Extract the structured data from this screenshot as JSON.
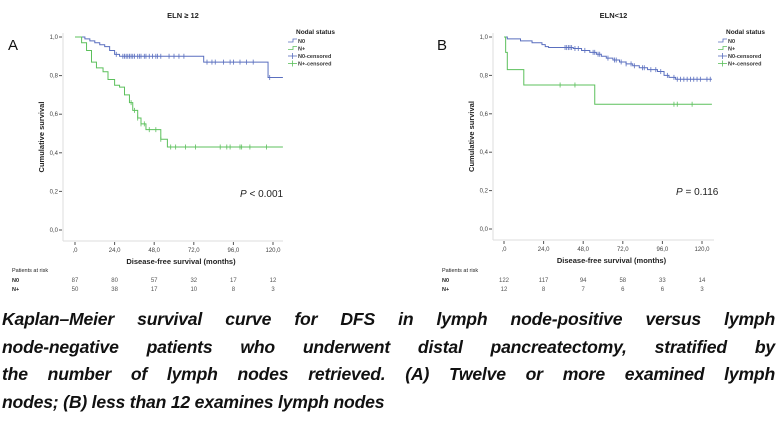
{
  "figure": {
    "caption_lines": [
      "Kaplan–Meier survival curve for DFS in lymph node-positive versus lymph",
      "node-negative patients who underwent distal pancreatectomy, stratified by",
      "the number of lymph nodes retrieved. (A) Twelve or more examined lymph",
      "nodes; (B) less than 12 examines lymph nodes"
    ]
  },
  "colors": {
    "N0": "#5a6fbf",
    "N+": "#5cc05c",
    "axis": "#cccccc",
    "text": "#333333"
  },
  "chart_data": [
    {
      "type": "line",
      "panel_label": "A",
      "title": "ELN ≥ 12",
      "xlabel": "Disease-free survival (months)",
      "ylabel": "Cumulative survival",
      "xlim": [
        -7,
        127
      ],
      "ylim": [
        0,
        1
      ],
      "xticks": [
        0,
        24,
        48,
        72,
        96,
        120
      ],
      "xtick_labels": [
        ",0",
        "24,0",
        "48,0",
        "72,0",
        "96,0",
        "120,0"
      ],
      "yticks": [
        0,
        0.2,
        0.4,
        0.6,
        0.8,
        1.0
      ],
      "ytick_labels": [
        "0,0",
        "0,2",
        "0,4",
        "0,6",
        "0,8",
        "1,0"
      ],
      "grid": false,
      "legend_title": "Nodal status",
      "legend_entries": [
        "N0",
        "N+",
        "N0-censored",
        "N+-censored"
      ],
      "legend_position": "top-right",
      "annotation": {
        "p_italic": "P",
        "p_rest": " < 0.001"
      },
      "series": [
        {
          "name": "N0",
          "steps": [
            [
              0,
              1.0
            ],
            [
              6,
              0.99
            ],
            [
              9,
              0.98
            ],
            [
              12,
              0.97
            ],
            [
              15,
              0.96
            ],
            [
              18,
              0.95
            ],
            [
              21,
              0.93
            ],
            [
              24,
              0.91
            ],
            [
              27,
              0.9
            ],
            [
              78,
              0.87
            ],
            [
              117,
              0.79
            ]
          ],
          "end": 126,
          "censored": [
            25,
            29,
            30,
            31,
            32,
            33,
            34,
            35,
            36,
            38,
            39,
            40,
            42,
            43,
            45,
            47,
            49,
            50,
            52,
            57,
            60,
            63,
            66,
            80,
            83,
            85,
            90,
            94,
            96,
            100,
            104,
            108,
            118
          ]
        },
        {
          "name": "N+",
          "steps": [
            [
              0,
              1.0
            ],
            [
              4,
              0.97
            ],
            [
              7,
              0.93
            ],
            [
              10,
              0.87
            ],
            [
              13,
              0.84
            ],
            [
              17,
              0.82
            ],
            [
              20,
              0.78
            ],
            [
              24,
              0.75
            ],
            [
              27,
              0.74
            ],
            [
              30,
              0.7
            ],
            [
              33,
              0.66
            ],
            [
              35,
              0.62
            ],
            [
              38,
              0.58
            ],
            [
              40,
              0.55
            ],
            [
              43,
              0.52
            ],
            [
              52,
              0.47
            ],
            [
              56,
              0.43
            ]
          ],
          "end": 126,
          "censored": [
            34,
            36,
            38,
            40,
            42,
            45,
            49,
            52,
            58,
            61,
            67,
            73,
            88,
            92,
            94,
            100,
            101,
            106,
            116
          ]
        }
      ],
      "risk_table": {
        "header": "Patients at risk",
        "rows": [
          {
            "label": "N0",
            "values": [
              "87",
              "80",
              "57",
              "32",
              "17",
              "12"
            ]
          },
          {
            "label": "N+",
            "values": [
              "50",
              "38",
              "17",
              "10",
              "8",
              "3"
            ]
          }
        ]
      }
    },
    {
      "type": "line",
      "panel_label": "B",
      "title": "ELN<12",
      "xlabel": "Disease-free survival (months)",
      "ylabel": "Cumulative survival",
      "xlim": [
        -7,
        127
      ],
      "ylim": [
        0,
        1
      ],
      "xticks": [
        0,
        24,
        48,
        72,
        96,
        120
      ],
      "xtick_labels": [
        ",0",
        "24,0",
        "48,0",
        "72,0",
        "96,0",
        "120,0"
      ],
      "yticks": [
        0,
        0.2,
        0.4,
        0.6,
        0.8,
        1.0
      ],
      "ytick_labels": [
        "0,0",
        "0,2",
        "0,4",
        "0,6",
        "0,8",
        "1,0"
      ],
      "grid": false,
      "legend_title": "Nodal status",
      "legend_entries": [
        "N0",
        "N+",
        "N0-censored",
        "N+-censored"
      ],
      "legend_position": "top-right",
      "annotation": {
        "p_italic": "P",
        "p_rest": " = 0.116"
      },
      "series": [
        {
          "name": "N0",
          "steps": [
            [
              0,
              1.0
            ],
            [
              2,
              0.99
            ],
            [
              10,
              0.98
            ],
            [
              17,
              0.97
            ],
            [
              23,
              0.96
            ],
            [
              25,
              0.95
            ],
            [
              27,
              0.945
            ],
            [
              42,
              0.94
            ],
            [
              47,
              0.93
            ],
            [
              52,
              0.92
            ],
            [
              56,
              0.91
            ],
            [
              59,
              0.9
            ],
            [
              62,
              0.89
            ],
            [
              66,
              0.88
            ],
            [
              70,
              0.87
            ],
            [
              74,
              0.86
            ],
            [
              78,
              0.85
            ],
            [
              82,
              0.84
            ],
            [
              87,
              0.83
            ],
            [
              93,
              0.82
            ],
            [
              97,
              0.8
            ],
            [
              100,
              0.79
            ],
            [
              104,
              0.78
            ]
          ],
          "end": 126,
          "censored": [
            37,
            38,
            39,
            40,
            41,
            43,
            45,
            49,
            54,
            55,
            57,
            58,
            63,
            67,
            68,
            71,
            74,
            77,
            79,
            84,
            85,
            89,
            92,
            95,
            99,
            103,
            105,
            107,
            109,
            111,
            113,
            115,
            117,
            119,
            123,
            125
          ]
        },
        {
          "name": "N+",
          "steps": [
            [
              0,
              1.0
            ],
            [
              1,
              0.92
            ],
            [
              2,
              0.83
            ],
            [
              12,
              0.75
            ],
            [
              55,
              0.65
            ]
          ],
          "end": 126,
          "censored": [
            34,
            43,
            103,
            105,
            114
          ]
        }
      ],
      "risk_table": {
        "header": "Patients at risk",
        "rows": [
          {
            "label": "N0",
            "values": [
              "122",
              "117",
              "94",
              "58",
              "33",
              "14"
            ]
          },
          {
            "label": "N+",
            "values": [
              "12",
              "8",
              "7",
              "6",
              "6",
              "3"
            ]
          }
        ]
      }
    }
  ]
}
